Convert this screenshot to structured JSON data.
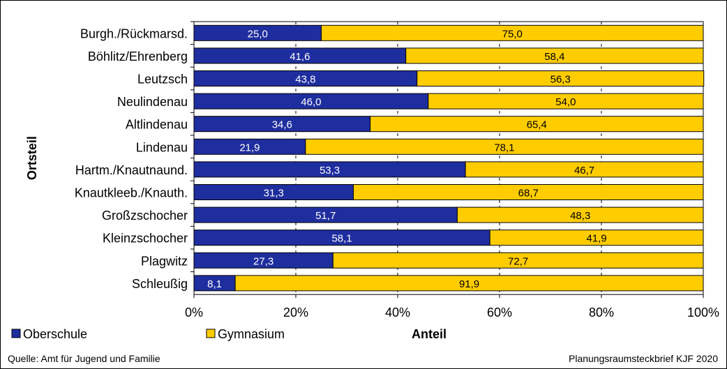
{
  "chart_data": {
    "type": "bar",
    "orientation": "horizontal",
    "stacked": true,
    "percent": true,
    "title": "",
    "xlabel": "Anteil",
    "ylabel": "Ortsteil",
    "xlim": [
      0,
      100
    ],
    "x_ticks": [
      "0%",
      "20%",
      "40%",
      "60%",
      "80%",
      "100%"
    ],
    "grid": "vertical-dashed",
    "legend_position": "bottom-left",
    "categories": [
      "Burgh./Rückmarsd.",
      "Böhlitz/Ehrenberg",
      "Leutzsch",
      "Neulindenau",
      "Altlindenau",
      "Lindenau",
      "Hartm./Knautnaund.",
      "Knautkleeb./Knauth.",
      "Großzschocher",
      "Kleinzschocher",
      "Plagwitz",
      "Schleußig"
    ],
    "series": [
      {
        "name": "Oberschule",
        "color": "#1f2e9e",
        "label_color": "#ffffff",
        "values": [
          25.0,
          41.6,
          43.8,
          46.0,
          34.6,
          21.9,
          53.3,
          31.3,
          51.7,
          58.1,
          27.3,
          8.1
        ],
        "labels": [
          "25,0",
          "41,6",
          "43,8",
          "46,0",
          "34,6",
          "21,9",
          "53,3",
          "31,3",
          "51,7",
          "58,1",
          "27,3",
          "8,1"
        ]
      },
      {
        "name": "Gymnasium",
        "color": "#ffcc00",
        "label_color": "#000000",
        "values": [
          75.0,
          58.4,
          56.3,
          54.0,
          65.4,
          78.1,
          46.7,
          68.7,
          48.3,
          41.9,
          72.7,
          91.9
        ],
        "labels": [
          "75,0",
          "58,4",
          "56,3",
          "54,0",
          "65,4",
          "78,1",
          "46,7",
          "68,7",
          "48,3",
          "41,9",
          "72,7",
          "91,9"
        ]
      }
    ]
  },
  "footer": {
    "source": "Quelle: Amt für Jugend und Familie",
    "brief": "Planungsraumsteckbrief KJF 2020"
  }
}
